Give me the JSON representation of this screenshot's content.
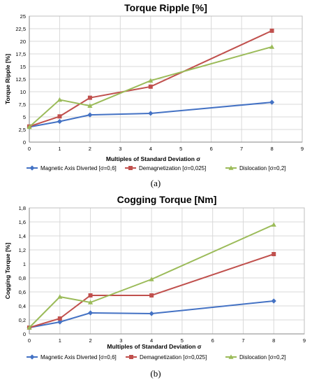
{
  "chart_data": [
    {
      "type": "line",
      "title": "Torque Ripple [%]",
      "xlabel": "Multiples of Standard Deviation σ",
      "ylabel": "Torque Ripple [%]",
      "xlim": [
        0,
        9
      ],
      "ylim": [
        0,
        25
      ],
      "xticks": [
        0,
        1,
        2,
        3,
        4,
        5,
        6,
        7,
        8,
        9
      ],
      "xtick_labels": [
        "0",
        "1",
        "2",
        "3",
        "4",
        "5",
        "6",
        "7",
        "8",
        "9"
      ],
      "yticks": [
        0,
        2.5,
        5,
        7.5,
        10,
        12.5,
        15,
        17.5,
        20,
        22.5,
        25
      ],
      "ytick_labels": [
        "0",
        "2,5",
        "5",
        "7,5",
        "10",
        "12,5",
        "15",
        "17,5",
        "20",
        "22,5",
        "25"
      ],
      "grid": true,
      "legend_position": "bottom",
      "x": [
        0,
        1,
        2,
        4,
        8
      ],
      "series": [
        {
          "name": "Magnetic Axis Diverted  [σ=0,6]",
          "values": [
            3.0,
            4.1,
            5.4,
            5.7,
            7.9
          ],
          "color": "#4472c4",
          "marker": "diamond"
        },
        {
          "name": "Demagnetization [σ=0,025]",
          "values": [
            3.1,
            5.1,
            8.8,
            11.0,
            22.1
          ],
          "color": "#c0504d",
          "marker": "square"
        },
        {
          "name": "Dislocation [σ=0,2]",
          "values": [
            3.0,
            8.4,
            7.2,
            12.2,
            18.9
          ],
          "color": "#9bbb59",
          "marker": "triangle"
        }
      ],
      "caption": "(a)"
    },
    {
      "type": "line",
      "title": "Cogging Torque [Nm]",
      "xlabel": "Multiples of Standard Deviation σ",
      "ylabel": "Cogging Torque [%]",
      "xlim": [
        0,
        9
      ],
      "ylim": [
        0,
        1.8
      ],
      "xticks": [
        0,
        1,
        2,
        3,
        4,
        5,
        6,
        7,
        8,
        9
      ],
      "xtick_labels": [
        "0",
        "1",
        "2",
        "3",
        "4",
        "5",
        "6",
        "7",
        "8",
        "9"
      ],
      "yticks": [
        0,
        0.2,
        0.4,
        0.6,
        0.8,
        1,
        1.2,
        1.4,
        1.6,
        1.8
      ],
      "ytick_labels": [
        "0",
        "0,2",
        "0,4",
        "0,6",
        "0,8",
        "1",
        "1,2",
        "1,4",
        "1,6",
        "1,8"
      ],
      "grid": true,
      "legend_position": "bottom",
      "x": [
        0,
        1,
        2,
        4,
        8
      ],
      "series": [
        {
          "name": "Magnetic Axis Diverted  [σ=0,6]",
          "values": [
            0.09,
            0.17,
            0.3,
            0.29,
            0.47
          ],
          "color": "#4472c4",
          "marker": "diamond"
        },
        {
          "name": "Demagnetization [σ=0,025]",
          "values": [
            0.09,
            0.22,
            0.55,
            0.55,
            1.14
          ],
          "color": "#c0504d",
          "marker": "square"
        },
        {
          "name": "Dislocation [σ=0,2]",
          "values": [
            0.09,
            0.53,
            0.45,
            0.78,
            1.56
          ],
          "color": "#9bbb59",
          "marker": "triangle"
        }
      ],
      "caption": "(b)"
    }
  ]
}
